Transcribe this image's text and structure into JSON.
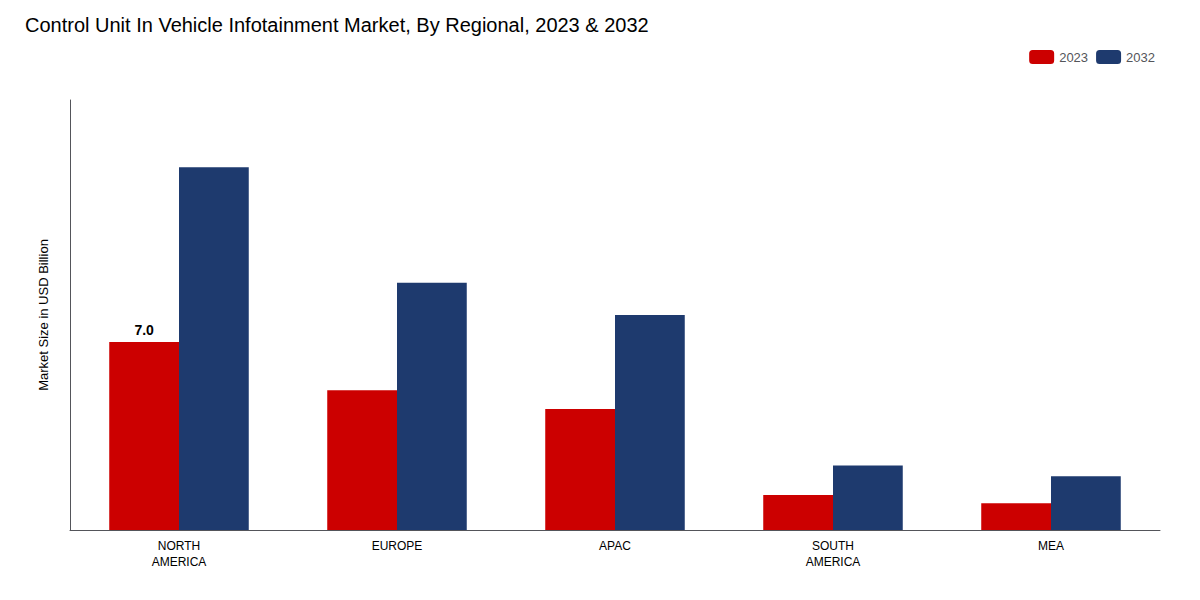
{
  "chart_data": {
    "type": "bar",
    "title": "Control Unit In Vehicle Infotainment Market, By Regional, 2023 & 2032",
    "ylabel": "Market Size in USD Billion",
    "categories": [
      "NORTH\nAMERICA",
      "EUROPE",
      "APAC",
      "SOUTH\nAMERICA",
      "MEA"
    ],
    "series": [
      {
        "name": "2023",
        "color": "#cc0000",
        "values": [
          7.0,
          5.2,
          4.5,
          1.3,
          1.0
        ]
      },
      {
        "name": "2032",
        "color": "#1e3a6e",
        "values": [
          13.5,
          9.2,
          8.0,
          2.4,
          2.0
        ]
      }
    ],
    "annotations": [
      {
        "text": "7.0",
        "series": "2023",
        "category": "NORTH\nAMERICA",
        "value": 7.0
      }
    ],
    "ylim": [
      0,
      16
    ],
    "yticks": [],
    "tick_labels": "x",
    "grid": false,
    "legend": "upper right"
  }
}
